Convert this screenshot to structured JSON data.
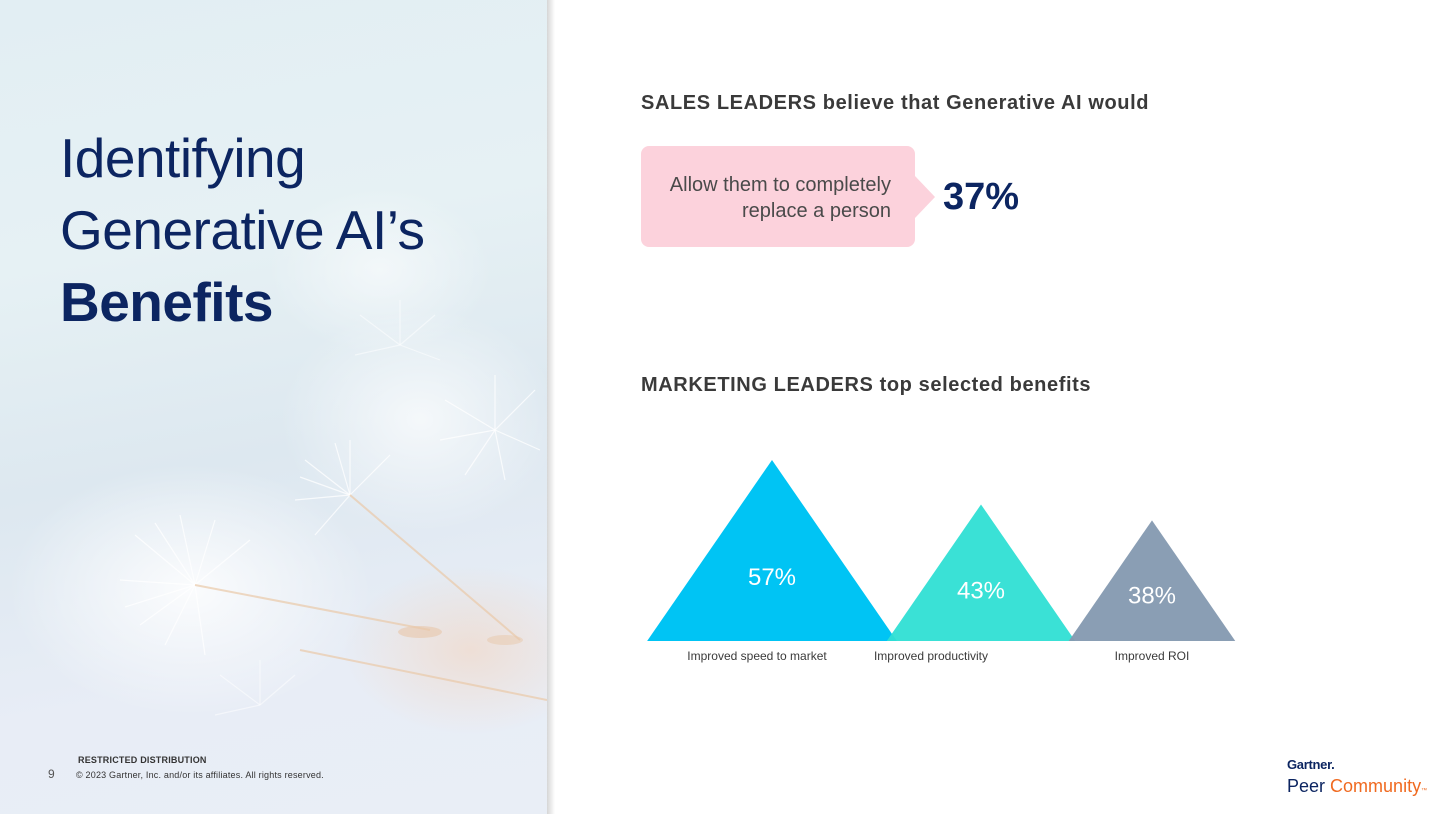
{
  "slide": {
    "title_line1": "Identifying",
    "title_line2": "Generative AI’s",
    "title_line3": "Benefits",
    "page_number": "9",
    "restricted": "RESTRICTED DISTRIBUTION",
    "copyright": "© 2023 Gartner, Inc. and/or its affiliates. All rights reserved."
  },
  "sales": {
    "heading": "SALES LEADERS believe that Generative AI would",
    "callout_text": "Allow them to completely replace a person",
    "value": "37%"
  },
  "marketing": {
    "heading": "MARKETING LEADERS top selected benefits"
  },
  "chart_data": {
    "type": "bar",
    "shape": "triangle",
    "categories": [
      "Improved speed to market",
      "Improved productivity",
      "Improved ROI"
    ],
    "values": [
      57,
      43,
      38
    ],
    "value_labels": [
      "57%",
      "43%",
      "38%"
    ],
    "colors": [
      "#00c4f4",
      "#2fdfd4",
      "#8499b0"
    ],
    "ylim": [
      0,
      57
    ],
    "title": "",
    "xlabel": "",
    "ylabel": ""
  },
  "logo": {
    "brand": "Gartner",
    "product_word1": "Peer",
    "product_word2": "Community",
    "trademark": "™"
  },
  "colors": {
    "navy": "#0c2561",
    "callout_pink": "#fcd2dc",
    "orange": "#f06a20"
  }
}
